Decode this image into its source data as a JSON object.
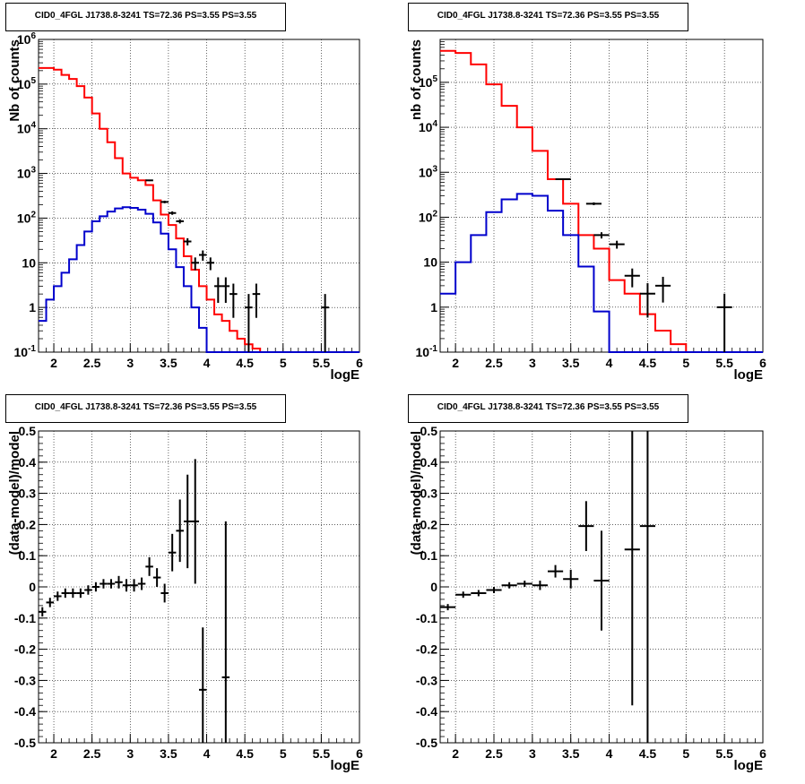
{
  "panels": [
    {
      "title": "CID0_4FGL J1738.8-3241 TS=72.36 PS=3.55 PS=3.55"
    },
    {
      "title": "CID0_4FGL J1738.8-3241 TS=72.36 PS=3.55 PS=3.55"
    },
    {
      "title": "CID0_4FGL J1738.8-3241 TS=72.36 PS=3.55 PS=3.55"
    },
    {
      "title": "CID0_4FGL J1738.8-3241 TS=72.36 PS=3.55 PS=3.55"
    }
  ],
  "colors": {
    "model_total": "#ff0000",
    "model_source": "#0000cc",
    "data": "#000000",
    "grid": "#000000",
    "background": "#ffffff"
  },
  "chart_data": [
    {
      "type": "line",
      "title": "CID0_4FGL J1738.8-3241 TS=72.36 PS=3.55 PS=3.55",
      "xlabel": "logE",
      "ylabel": "Nb of counts",
      "xlim": [
        1.8,
        6.0
      ],
      "ylim": [
        0.1,
        1000000
      ],
      "yscale": "log",
      "grid": true,
      "x_ticks": [
        "2",
        "2.5",
        "3",
        "3.5",
        "4",
        "4.5",
        "5",
        "5.5",
        "6"
      ],
      "y_ticks": [
        "10^-1",
        "1",
        "10",
        "10^2",
        "10^3",
        "10^4",
        "10^5",
        "10^6"
      ],
      "bin_edges": [
        1.8,
        1.9,
        2.0,
        2.1,
        2.2,
        2.3,
        2.4,
        2.5,
        2.6,
        2.7,
        2.8,
        2.9,
        3.0,
        3.1,
        3.2,
        3.3,
        3.4,
        3.5,
        3.6,
        3.7,
        3.8,
        3.9,
        4.0,
        4.1,
        4.2,
        4.3,
        4.4,
        4.5,
        4.6,
        4.7,
        4.8,
        4.9,
        5.0,
        5.1,
        5.2,
        5.3,
        5.4,
        5.5,
        5.6,
        5.7,
        5.8,
        5.9,
        6.0
      ],
      "series": [
        {
          "name": "total model",
          "color": "#ff0000",
          "values": [
            230000,
            230000,
            210000,
            160000,
            130000,
            90000,
            50000,
            22000,
            10000,
            5000,
            2200,
            1000,
            800,
            700,
            550,
            250,
            120,
            70,
            35,
            14,
            7,
            3,
            1.5,
            0.7,
            0.5,
            0.3,
            0.2,
            0.15,
            0.12,
            0.1,
            0.1,
            0.1,
            0.1,
            0.1,
            0.1,
            0.1,
            0.1,
            0.1,
            0.1,
            0.1,
            0.1,
            0.1
          ]
        },
        {
          "name": "source model",
          "color": "#0000cc",
          "values": [
            0.5,
            1.5,
            3,
            6,
            12,
            25,
            50,
            85,
            110,
            140,
            165,
            175,
            170,
            155,
            125,
            80,
            45,
            20,
            8,
            3,
            1,
            0.35,
            0.1,
            0.1,
            0.1,
            0.1,
            0.1,
            0.1,
            0.1,
            0.1,
            0.1,
            0.1,
            0.1,
            0.1,
            0.1,
            0.1,
            0.1,
            0.1,
            0.1,
            0.1,
            0.1,
            0.1
          ]
        }
      ],
      "data_points": [
        {
          "x": 3.25,
          "y": 700
        },
        {
          "x": 3.45,
          "y": 230
        },
        {
          "x": 3.55,
          "y": 130
        },
        {
          "x": 3.65,
          "y": 85
        },
        {
          "x": 3.75,
          "y": 30
        },
        {
          "x": 3.85,
          "y": 10
        },
        {
          "x": 3.95,
          "y": 15
        },
        {
          "x": 4.05,
          "y": 10
        },
        {
          "x": 4.15,
          "y": 3
        },
        {
          "x": 4.25,
          "y": 3
        },
        {
          "x": 4.35,
          "y": 2
        },
        {
          "x": 4.55,
          "y": 1
        },
        {
          "x": 4.65,
          "y": 2
        },
        {
          "x": 5.55,
          "y": 1
        }
      ]
    },
    {
      "type": "line",
      "title": "CID0_4FGL J1738.8-3241 TS=72.36 PS=3.55 PS=3.55",
      "xlabel": "logE",
      "ylabel": "nb of counts",
      "xlim": [
        1.8,
        6.0
      ],
      "ylim": [
        0.1,
        900000
      ],
      "yscale": "log",
      "grid": true,
      "x_ticks": [
        "2",
        "2.5",
        "3",
        "3.5",
        "4",
        "4.5",
        "5",
        "5.5",
        "6"
      ],
      "y_ticks": [
        "10^-1",
        "1",
        "10",
        "10^2",
        "10^3",
        "10^4",
        "10^5"
      ],
      "bin_edges": [
        1.8,
        2.0,
        2.2,
        2.4,
        2.6,
        2.8,
        3.0,
        3.2,
        3.4,
        3.6,
        3.8,
        4.0,
        4.2,
        4.4,
        4.6,
        4.8,
        5.0,
        5.2,
        5.4,
        5.6,
        5.8,
        6.0
      ],
      "series": [
        {
          "name": "total model",
          "color": "#ff0000",
          "values": [
            500000,
            450000,
            250000,
            90000,
            30000,
            10000,
            3000,
            700,
            200,
            40,
            20,
            4,
            2,
            0.7,
            0.3,
            0.15,
            0.1,
            0.1,
            0.1,
            0.1,
            0.1
          ]
        },
        {
          "name": "source model",
          "color": "#0000cc",
          "values": [
            2,
            10,
            40,
            130,
            250,
            330,
            300,
            140,
            40,
            8,
            0.8,
            0.1,
            0.1,
            0.1,
            0.1,
            0.1,
            0.1,
            0.1,
            0.1,
            0.1,
            0.1
          ]
        }
      ],
      "data_points": [
        {
          "x": 3.4,
          "y": 700
        },
        {
          "x": 3.8,
          "y": 200
        },
        {
          "x": 3.9,
          "y": 40
        },
        {
          "x": 4.1,
          "y": 25
        },
        {
          "x": 4.3,
          "y": 5
        },
        {
          "x": 4.5,
          "y": 2
        },
        {
          "x": 4.7,
          "y": 3
        },
        {
          "x": 5.5,
          "y": 1
        }
      ]
    },
    {
      "type": "scatter",
      "title": "CID0_4FGL J1738.8-3241 TS=72.36 PS=3.55 PS=3.55",
      "xlabel": "logE",
      "ylabel": "(data-model)/model",
      "xlim": [
        1.8,
        6.0
      ],
      "ylim": [
        -0.5,
        0.5
      ],
      "grid": true,
      "x_ticks": [
        "2",
        "2.5",
        "3",
        "3.5",
        "4",
        "4.5",
        "5",
        "5.5",
        "6"
      ],
      "y_ticks": [
        "-0.5",
        "-0.4",
        "-0.3",
        "-0.2",
        "-0.1",
        "0",
        "0.1",
        "0.2",
        "0.3",
        "0.4",
        "0.5"
      ],
      "points": [
        {
          "x": 1.85,
          "y": -0.08,
          "err": 0.015
        },
        {
          "x": 1.95,
          "y": -0.05,
          "err": 0.015
        },
        {
          "x": 2.05,
          "y": -0.03,
          "err": 0.015
        },
        {
          "x": 2.15,
          "y": -0.02,
          "err": 0.015
        },
        {
          "x": 2.25,
          "y": -0.02,
          "err": 0.015
        },
        {
          "x": 2.35,
          "y": -0.02,
          "err": 0.015
        },
        {
          "x": 2.45,
          "y": -0.01,
          "err": 0.015
        },
        {
          "x": 2.55,
          "y": 0.0,
          "err": 0.015
        },
        {
          "x": 2.65,
          "y": 0.01,
          "err": 0.015
        },
        {
          "x": 2.75,
          "y": 0.01,
          "err": 0.015
        },
        {
          "x": 2.85,
          "y": 0.015,
          "err": 0.02
        },
        {
          "x": 2.95,
          "y": 0.005,
          "err": 0.02
        },
        {
          "x": 3.05,
          "y": 0.005,
          "err": 0.02
        },
        {
          "x": 3.15,
          "y": 0.01,
          "err": 0.02
        },
        {
          "x": 3.25,
          "y": 0.065,
          "err": 0.03
        },
        {
          "x": 3.35,
          "y": 0.03,
          "err": 0.03
        },
        {
          "x": 3.45,
          "y": -0.02,
          "err": 0.03
        },
        {
          "x": 3.55,
          "y": 0.11,
          "err": 0.06
        },
        {
          "x": 3.65,
          "y": 0.18,
          "err": 0.1
        },
        {
          "x": 3.75,
          "y": 0.21,
          "err": 0.15
        },
        {
          "x": 3.85,
          "y": 0.21,
          "err": 0.2
        },
        {
          "x": 3.95,
          "y": -0.33,
          "err": 0.2
        },
        {
          "x": 4.25,
          "y": -0.29,
          "err": 0.5
        }
      ]
    },
    {
      "type": "scatter",
      "title": "CID0_4FGL J1738.8-3241 TS=72.36 PS=3.55 PS=3.55",
      "xlabel": "logE",
      "ylabel": "(data-model)/model",
      "xlim": [
        1.8,
        6.0
      ],
      "ylim": [
        -0.5,
        0.5
      ],
      "grid": true,
      "x_ticks": [
        "2",
        "2.5",
        "3",
        "3.5",
        "4",
        "4.5",
        "5",
        "5.5",
        "6"
      ],
      "y_ticks": [
        "-0.5",
        "-0.4",
        "-0.3",
        "-0.2",
        "-0.1",
        "0",
        "0.1",
        "0.2",
        "0.3",
        "0.4",
        "0.5"
      ],
      "points": [
        {
          "x": 1.9,
          "y": -0.065,
          "err": 0.01
        },
        {
          "x": 2.1,
          "y": -0.025,
          "err": 0.01
        },
        {
          "x": 2.3,
          "y": -0.02,
          "err": 0.01
        },
        {
          "x": 2.5,
          "y": -0.01,
          "err": 0.01
        },
        {
          "x": 2.7,
          "y": 0.005,
          "err": 0.01
        },
        {
          "x": 2.9,
          "y": 0.01,
          "err": 0.01
        },
        {
          "x": 3.1,
          "y": 0.005,
          "err": 0.015
        },
        {
          "x": 3.3,
          "y": 0.05,
          "err": 0.02
        },
        {
          "x": 3.5,
          "y": 0.025,
          "err": 0.03
        },
        {
          "x": 3.7,
          "y": 0.195,
          "err": 0.08
        },
        {
          "x": 3.9,
          "y": 0.02,
          "err": 0.16
        },
        {
          "x": 4.3,
          "y": 0.12,
          "err": 0.5
        },
        {
          "x": 4.5,
          "y": 0.195,
          "err": 0.7
        }
      ]
    }
  ]
}
